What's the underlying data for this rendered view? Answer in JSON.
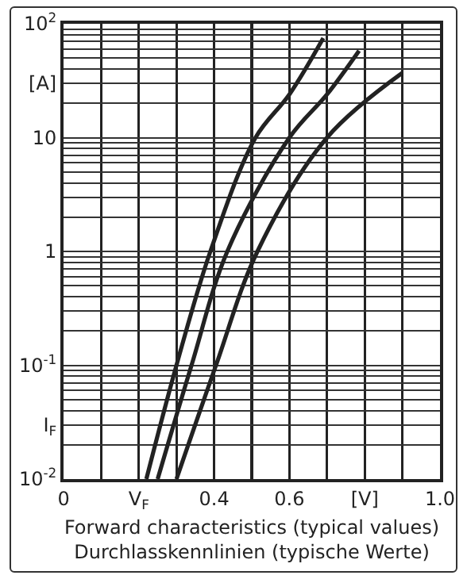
{
  "chart_data": {
    "type": "line",
    "xlabel": "Forward characteristics (typical values)\nDurchlasskennlinien (typische Werte)",
    "log": "y",
    "grid": true,
    "marker": "none",
    "line_style": "solid",
    "xlim": [
      0,
      1.0
    ],
    "xticks": [
      0,
      {
        "value": 0.1,
        "label": null
      },
      {
        "value": 0.2,
        "label": "V$_{F}$"
      },
      {
        "value": 0.3,
        "label": null
      },
      0.4,
      {
        "value": 0.5,
        "label": null
      },
      0.6,
      {
        "value": 0.7,
        "label": null
      },
      {
        "value": 0.8,
        "label": "[V]"
      },
      {
        "value": 0.9,
        "label": null
      },
      {
        "value": 1.0,
        "label": "1.0"
      }
    ],
    "ylim": [
      0.01,
      100
    ],
    "yticks": [
      {
        "value": 0.01,
        "label": "10$^{-2}$"
      },
      {
        "value": 0.02,
        "label": null
      },
      {
        "value": 0.03,
        "label": "I$_{F}$"
      },
      {
        "value": 0.04,
        "label": null
      },
      {
        "value": 0.05,
        "label": null
      },
      {
        "value": 0.06,
        "label": null
      },
      {
        "value": 0.07,
        "label": null
      },
      {
        "value": 0.08,
        "label": null
      },
      {
        "value": 0.09,
        "label": null
      },
      {
        "value": 0.1,
        "label": "10$^{-1}$"
      },
      {
        "value": 0.2,
        "label": null
      },
      {
        "value": 0.3,
        "label": null
      },
      {
        "value": 0.4,
        "label": null
      },
      {
        "value": 0.5,
        "label": null
      },
      {
        "value": 0.6,
        "label": null
      },
      {
        "value": 0.7,
        "label": null
      },
      {
        "value": 0.8,
        "label": null
      },
      {
        "value": 0.9,
        "label": null
      },
      1,
      {
        "value": 2,
        "label": null
      },
      {
        "value": 3,
        "label": null
      },
      {
        "value": 4,
        "label": null
      },
      {
        "value": 5,
        "label": null
      },
      {
        "value": 6,
        "label": null
      },
      {
        "value": 7,
        "label": null
      },
      {
        "value": 8,
        "label": null
      },
      {
        "value": 9,
        "label": null
      },
      10,
      {
        "value": 20,
        "label": null
      },
      {
        "value": 30,
        "label": "[A]"
      },
      {
        "value": 40,
        "label": null
      },
      {
        "value": 50,
        "label": null
      },
      {
        "value": 60,
        "label": null
      },
      {
        "value": 70,
        "label": null
      },
      {
        "value": 80,
        "label": null
      },
      {
        "value": 90,
        "label": null
      },
      {
        "value": 100,
        "label": "10$^{2}$"
      }
    ],
    "series": [
      {
        "color": "#222222",
        "x": [
          0.22,
          0.3,
          0.39,
          0.51,
          0.6,
          0.69
        ],
        "values": [
          0.01,
          0.1,
          1,
          10,
          24,
          75
        ]
      },
      {
        "color": "#222222",
        "x": [
          0.25,
          0.34,
          0.435,
          0.6,
          0.7,
          0.785
        ],
        "values": [
          0.01,
          0.1,
          1,
          10,
          24,
          58
        ]
      },
      {
        "color": "#222222",
        "x": [
          0.3,
          0.405,
          0.515,
          0.7,
          0.9
        ],
        "values": [
          0.01,
          0.1,
          1,
          10,
          37
        ]
      }
    ]
  }
}
